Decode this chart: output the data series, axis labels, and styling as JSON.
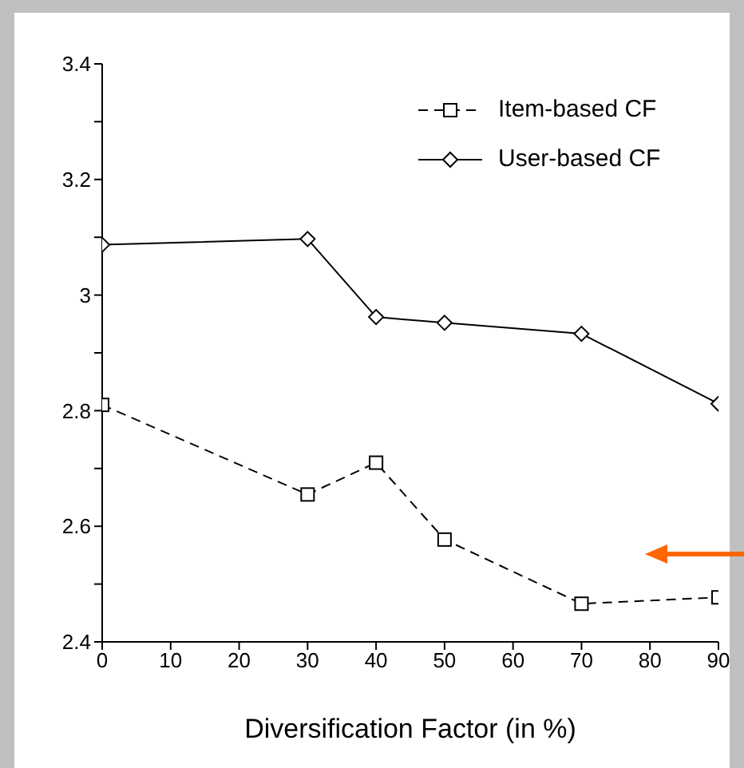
{
  "chart_data": {
    "type": "line",
    "xlabel": "Diversification Factor (in %)",
    "x": [
      0,
      30,
      40,
      50,
      70,
      90
    ],
    "series": [
      {
        "name": "Item-based CF",
        "color": "#000000",
        "marker": "square",
        "line_style": "dashed",
        "values": [
          2.81,
          2.655,
          2.71,
          2.577,
          2.466,
          2.477
        ]
      },
      {
        "name": "User-based CF",
        "color": "#000000",
        "marker": "diamond",
        "line_style": "solid",
        "values": [
          3.087,
          3.097,
          2.962,
          2.952,
          2.933,
          2.812
        ]
      }
    ],
    "xlim": [
      0,
      90
    ],
    "xticks": [
      0,
      10,
      20,
      30,
      40,
      50,
      60,
      70,
      80,
      90
    ],
    "ylim": [
      2.4,
      3.4
    ],
    "yticks": [
      2.4,
      {
        "value": 2.5,
        "label": null
      },
      2.6,
      {
        "value": 2.7,
        "label": null
      },
      2.8,
      {
        "value": 2.9,
        "label": null
      },
      3,
      {
        "value": 3.1,
        "label": null
      },
      3.2,
      {
        "value": 3.3,
        "label": null
      },
      3.4
    ],
    "grid": false,
    "legend": "top right"
  }
}
